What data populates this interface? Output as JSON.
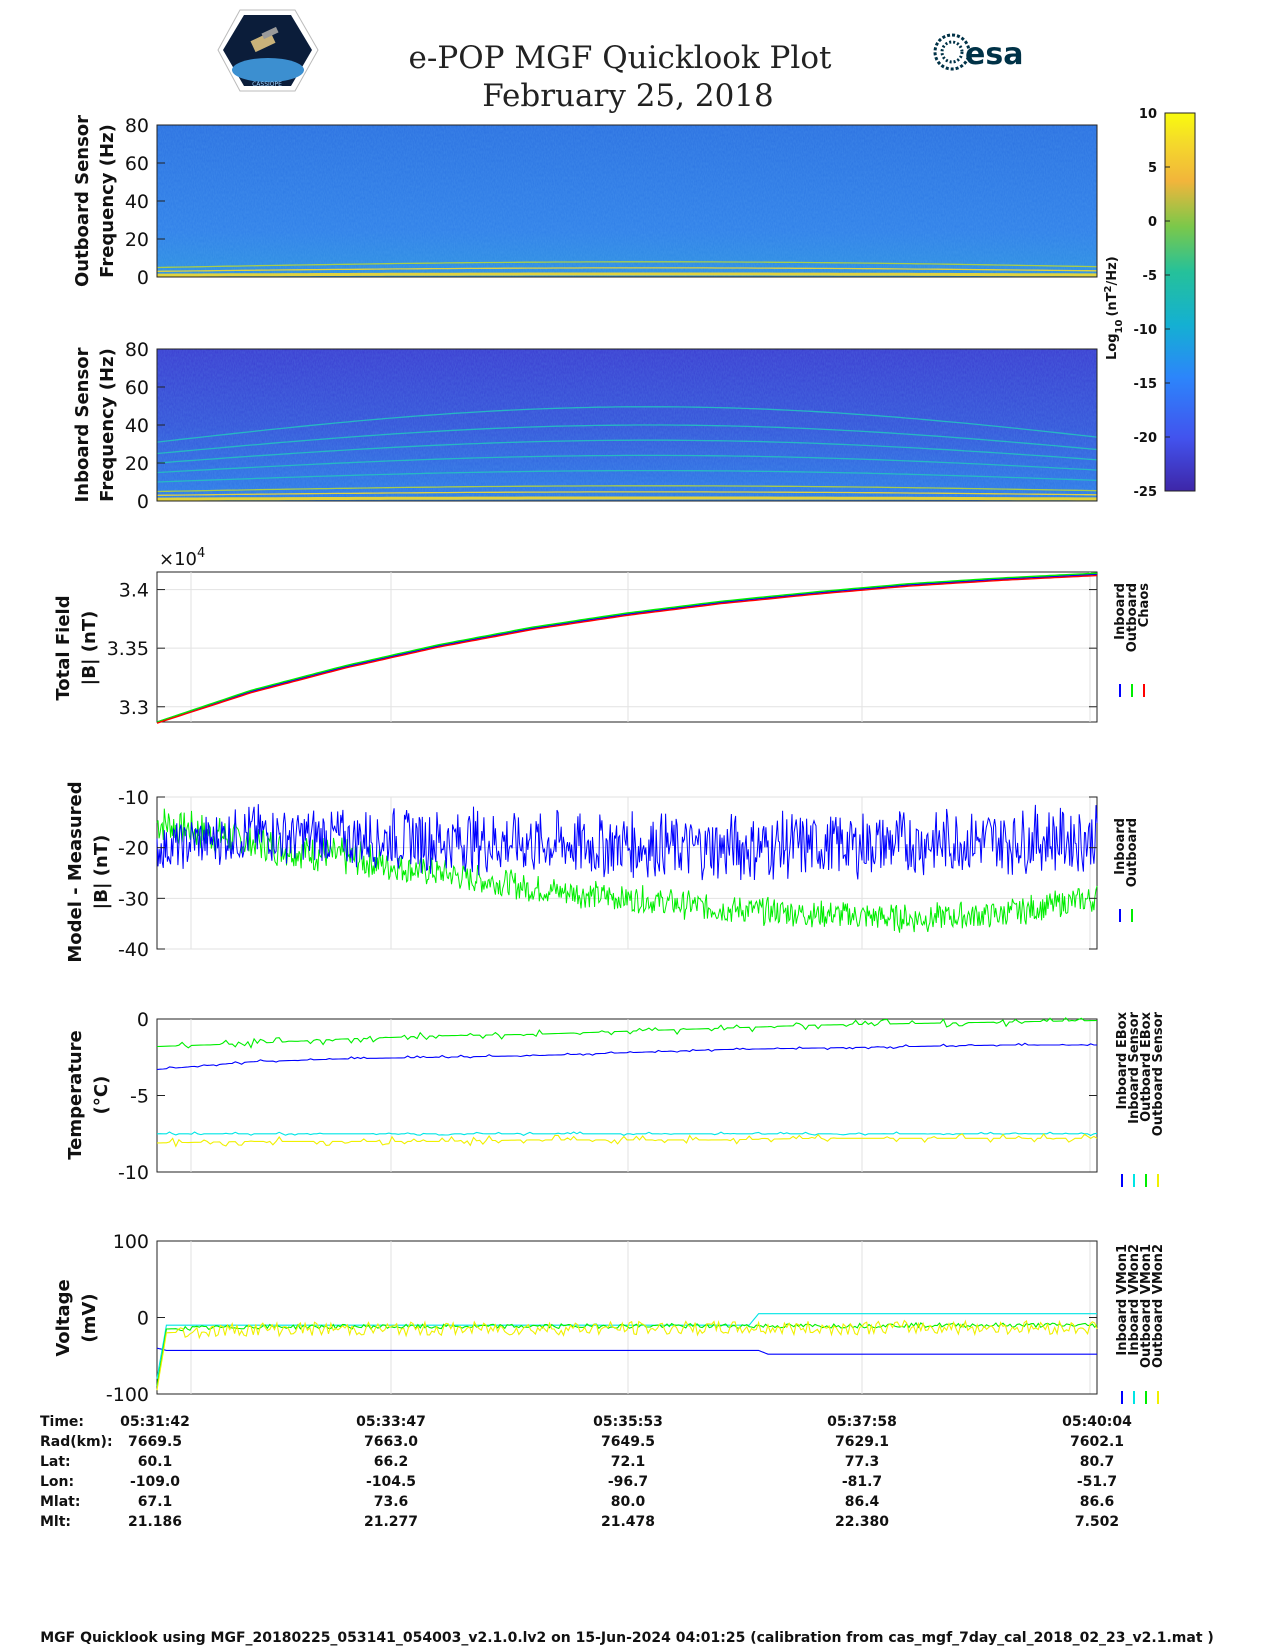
{
  "header": {
    "title": "e-POP MGF Quicklook Plot",
    "date": "February 25, 2018",
    "left_logo_text": "CASSIOPE",
    "right_logo_text": "esa"
  },
  "colors": {
    "inboard": "#0000ff",
    "outboard": "#00ee00",
    "chaos": "#ff0000",
    "cyan": "#00e5e5",
    "yellow": "#f0f000",
    "spectrogram_bg": "#1f5fd6"
  },
  "chart_data": [
    {
      "type": "heatmap",
      "ylabel": [
        "Outboard Sensor",
        "Frequency (Hz)"
      ],
      "yticks": [
        "0",
        "20",
        "40",
        "60",
        "80"
      ],
      "ylim": [
        0,
        80
      ],
      "harmonics_hz": [
        1,
        3,
        5
      ]
    },
    {
      "type": "heatmap",
      "ylabel": [
        "Inboard Sensor",
        "Frequency (Hz)"
      ],
      "yticks": [
        "0",
        "20",
        "40",
        "60",
        "80"
      ],
      "ylim": [
        0,
        80
      ],
      "harmonics_hz": [
        1,
        3,
        5,
        10,
        15,
        20,
        25,
        31
      ]
    },
    {
      "type": "colorbar",
      "label_main": "Log",
      "label_sub": "10",
      "label_unit": "(nT",
      "label_sup": "2",
      "label_end": "/Hz)",
      "ticks": [
        "10",
        "5",
        "0",
        "-5",
        "-10",
        "-15",
        "-20",
        "-25"
      ],
      "range": [
        -25,
        10
      ]
    },
    {
      "type": "line",
      "ylabel": [
        "Total Field",
        "|B| (nT)"
      ],
      "yticks": [
        "3.3",
        "3.35",
        "3.4"
      ],
      "exponent_label": "×10",
      "exponent": "4",
      "ylim": [
        3.287,
        3.415
      ],
      "legend": [
        "Inboard",
        "Outboard",
        "Chaos"
      ],
      "series": [
        {
          "name": "Inboard",
          "x": [
            0,
            0.1,
            0.2,
            0.3,
            0.4,
            0.5,
            0.6,
            0.7,
            0.8,
            0.9,
            1.0
          ],
          "values": [
            3.287,
            3.313,
            3.334,
            3.352,
            3.367,
            3.379,
            3.389,
            3.397,
            3.404,
            3.409,
            3.413
          ]
        },
        {
          "name": "Outboard",
          "x": [
            0,
            0.1,
            0.2,
            0.3,
            0.4,
            0.5,
            0.6,
            0.7,
            0.8,
            0.9,
            1.0
          ],
          "values": [
            3.287,
            3.314,
            3.335,
            3.353,
            3.368,
            3.38,
            3.39,
            3.398,
            3.405,
            3.41,
            3.414
          ]
        },
        {
          "name": "Chaos",
          "x": [
            0,
            0.1,
            0.2,
            0.3,
            0.4,
            0.5,
            0.6,
            0.7,
            0.8,
            0.9,
            1.0
          ],
          "values": [
            3.286,
            3.312,
            3.333,
            3.351,
            3.366,
            3.378,
            3.388,
            3.396,
            3.403,
            3.408,
            3.412
          ]
        }
      ]
    },
    {
      "type": "line",
      "ylabel": [
        "Model - Measured",
        "|B| (nT)"
      ],
      "yticks": [
        "-10",
        "-20",
        "-30",
        "-40"
      ],
      "ylim": [
        -40,
        -10
      ],
      "legend": [
        "Inboard",
        "Outboard"
      ],
      "series": [
        {
          "name": "Inboard",
          "x": [
            0,
            0.1,
            0.2,
            0.3,
            0.4,
            0.5,
            0.6,
            0.7,
            0.8,
            0.9,
            1.0
          ],
          "values": [
            -20,
            -17,
            -18,
            -18.5,
            -19,
            -19.5,
            -20,
            -19.5,
            -19,
            -18.5,
            -18
          ],
          "amplitude": [
            5,
            6,
            6,
            7,
            7,
            7,
            7,
            7,
            7,
            7,
            7
          ]
        },
        {
          "name": "Outboard",
          "x": [
            0,
            0.1,
            0.2,
            0.3,
            0.4,
            0.5,
            0.6,
            0.7,
            0.8,
            0.9,
            1.0
          ],
          "values": [
            -15,
            -19,
            -22,
            -25,
            -28,
            -30,
            -32,
            -33,
            -34,
            -33,
            -30
          ],
          "amplitude": [
            4,
            4,
            4,
            3,
            3,
            3,
            3,
            3,
            3,
            3,
            3
          ]
        }
      ]
    },
    {
      "type": "line",
      "ylabel": [
        "Temperature",
        "(°C)"
      ],
      "yticks": [
        "0",
        "-5",
        "-10"
      ],
      "ylim": [
        -10,
        0
      ],
      "legend": [
        "Inboard EBox",
        "Inboard Sensor",
        "Outboard EBox",
        "Outboard Sensor"
      ],
      "series": [
        {
          "name": "Inboard EBox",
          "x": [
            0,
            0.1,
            0.2,
            0.3,
            0.4,
            0.5,
            0.6,
            0.7,
            0.8,
            0.9,
            1.0
          ],
          "values": [
            -3.3,
            -2.8,
            -2.6,
            -2.5,
            -2.4,
            -2.2,
            -2.0,
            -1.9,
            -1.8,
            -1.7,
            -1.7
          ]
        },
        {
          "name": "Inboard Sensor",
          "x": [
            0,
            0.1,
            0.2,
            0.3,
            0.4,
            0.5,
            0.6,
            0.7,
            0.8,
            0.9,
            1.0
          ],
          "values": [
            -7.5,
            -7.5,
            -7.5,
            -7.5,
            -7.5,
            -7.5,
            -7.5,
            -7.5,
            -7.5,
            -7.5,
            -7.5
          ]
        },
        {
          "name": "Outboard EBox",
          "x": [
            0,
            0.1,
            0.2,
            0.3,
            0.4,
            0.5,
            0.6,
            0.7,
            0.8,
            0.9,
            1.0
          ],
          "values": [
            -1.8,
            -1.6,
            -1.3,
            -1.1,
            -1.0,
            -0.8,
            -0.6,
            -0.4,
            -0.3,
            -0.2,
            -0.1
          ]
        },
        {
          "name": "Outboard Sensor",
          "x": [
            0,
            0.1,
            0.2,
            0.3,
            0.4,
            0.5,
            0.6,
            0.7,
            0.8,
            0.9,
            1.0
          ],
          "values": [
            -8.1,
            -8.0,
            -8.0,
            -8.0,
            -7.9,
            -7.9,
            -7.9,
            -7.8,
            -7.8,
            -7.8,
            -7.8
          ]
        }
      ]
    },
    {
      "type": "line",
      "ylabel": [
        "Voltage",
        "(mV)"
      ],
      "yticks": [
        "100",
        "0",
        "-100"
      ],
      "ylim": [
        -100,
        100
      ],
      "legend": [
        "Inboard VMon1",
        "Inboard VMon2",
        "Outboard VMon1",
        "Outboard VMon2"
      ],
      "series": [
        {
          "name": "Inboard VMon1",
          "x": [
            0,
            0.01,
            0.1,
            0.3,
            0.5,
            0.64,
            0.65,
            0.8,
            1.0
          ],
          "values": [
            -40,
            -43,
            -43,
            -43,
            -43,
            -43,
            -48,
            -48,
            -48
          ]
        },
        {
          "name": "Inboard VMon2",
          "x": [
            0,
            0.01,
            0.1,
            0.3,
            0.5,
            0.63,
            0.64,
            0.8,
            1.0
          ],
          "values": [
            -80,
            -10,
            -10,
            -10,
            -10,
            -10,
            5,
            5,
            5
          ]
        },
        {
          "name": "Outboard VMon1",
          "x": [
            0,
            0.01,
            0.1,
            0.3,
            0.5,
            0.7,
            0.8,
            1.0
          ],
          "values": [
            -90,
            -15,
            -12,
            -12,
            -11,
            -11,
            -10,
            -10
          ]
        },
        {
          "name": "Outboard VMon2",
          "x": [
            0,
            0.01,
            0.1,
            0.3,
            0.5,
            0.7,
            0.8,
            1.0
          ],
          "values": [
            -95,
            -20,
            -15,
            -15,
            -14,
            -14,
            -13,
            -13
          ]
        }
      ]
    }
  ],
  "ephemeris": {
    "rows": [
      {
        "label": "Time:",
        "values": [
          "05:31:42",
          "05:33:47",
          "05:35:53",
          "05:37:58",
          "05:40:04"
        ]
      },
      {
        "label": "Rad(km):",
        "values": [
          "7669.5",
          "7663.0",
          "7649.5",
          "7629.1",
          "7602.1"
        ]
      },
      {
        "label": "Lat:",
        "values": [
          "60.1",
          "66.2",
          "72.1",
          "77.3",
          "80.7"
        ]
      },
      {
        "label": "Lon:",
        "values": [
          "-109.0",
          "-104.5",
          "-96.7",
          "-81.7",
          "-51.7"
        ]
      },
      {
        "label": "Mlat:",
        "values": [
          "67.1",
          "73.6",
          "80.0",
          "86.4",
          "86.6"
        ]
      },
      {
        "label": "Mlt:",
        "values": [
          "21.186",
          "21.277",
          "21.478",
          "22.380",
          "7.502"
        ]
      }
    ]
  },
  "footer": "MGF Quicklook using MGF_20180225_053141_054003_v2.1.0.lv2 on 15-Jun-2024 04:01:25 (calibration from cas_mgf_7day_cal_2018_02_23_v2.1.mat )"
}
